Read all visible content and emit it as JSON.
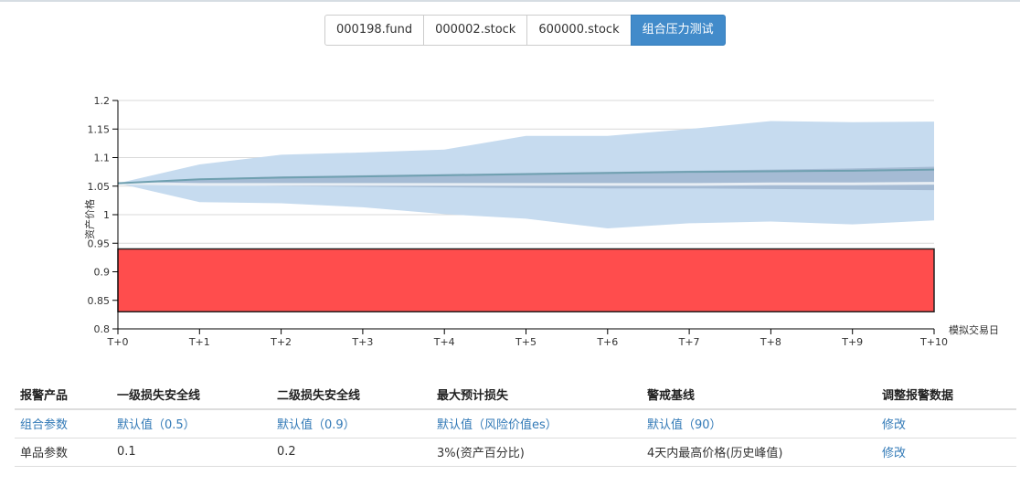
{
  "tabs": [
    {
      "label": "000198.fund"
    },
    {
      "label": "000002.stock"
    },
    {
      "label": "600000.stock"
    },
    {
      "label": "组合压力测试",
      "active": true
    }
  ],
  "chart_data": {
    "type": "area",
    "title": "",
    "ylabel": "资产价格",
    "xlabel": "模拟交易日",
    "ylim": [
      0.8,
      1.2
    ],
    "yticks": [
      "0.8",
      "0.85",
      "0.9",
      "0.95",
      "1",
      "1.05",
      "1.1",
      "1.15",
      "1.2"
    ],
    "categories": [
      "T+0",
      "T+1",
      "T+2",
      "T+3",
      "T+4",
      "T+5",
      "T+6",
      "T+7",
      "T+8",
      "T+9",
      "T+10"
    ],
    "grid": true,
    "outer_band": {
      "upper": [
        1.055,
        1.088,
        1.105,
        1.109,
        1.114,
        1.138,
        1.138,
        1.15,
        1.164,
        1.162,
        1.163
      ],
      "lower": [
        1.055,
        1.022,
        1.02,
        1.013,
        1.001,
        0.993,
        0.976,
        0.985,
        0.988,
        0.983,
        0.99
      ]
    },
    "inner_band": {
      "upper": [
        1.055,
        1.063,
        1.067,
        1.069,
        1.071,
        1.073,
        1.075,
        1.077,
        1.079,
        1.081,
        1.084
      ],
      "lower": [
        1.055,
        1.052,
        1.05,
        1.049,
        1.048,
        1.047,
        1.046,
        1.046,
        1.045,
        1.044,
        1.043
      ]
    },
    "mean_line": [
      1.055,
      1.062,
      1.065,
      1.067,
      1.069,
      1.071,
      1.073,
      1.075,
      1.076,
      1.077,
      1.079
    ],
    "base_line": [
      1.055,
      1.053,
      1.053,
      1.053,
      1.053,
      1.053,
      1.053,
      1.053,
      1.054,
      1.054,
      1.055
    ],
    "danger_zone": {
      "from": 0.83,
      "to": 0.94,
      "color": "#ff4d4d"
    },
    "colors": {
      "outer": "#c6dbef",
      "inner": "#9fb5cf",
      "mean": "#6fa0b0",
      "base": "#e8eef4",
      "grid": "#d9d9d9"
    }
  },
  "table": {
    "headers": [
      "报警产品",
      "一级损失安全线",
      "二级损失安全线",
      "最大预计损失",
      "警戒基线",
      "调整报警数据"
    ],
    "rows": [
      {
        "product": "组合参数",
        "level1": "默认值（0.5）",
        "level2": "默认值（0.9）",
        "max_loss": "默认值（风险价值es）",
        "baseline": "默认值（90）",
        "action": "修改",
        "link_style": true
      },
      {
        "product": "单品参数",
        "level1": "0.1",
        "level2": "0.2",
        "max_loss": "3%(资产百分比)",
        "baseline": "4天内最高价格(历史峰值)",
        "action": "修改",
        "link_style": false
      }
    ]
  }
}
